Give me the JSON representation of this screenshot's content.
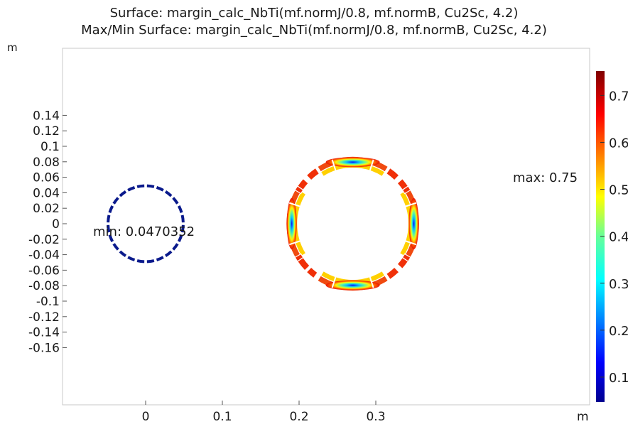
{
  "titles": {
    "line1": "Surface: margin_calc_NbTi(mf.normJ/0.8, mf.normB, Cu2Sc, 4.2)",
    "line2": "Max/Min Surface: margin_calc_NbTi(mf.normJ/0.8, mf.normB, Cu2Sc, 4.2)"
  },
  "chart_data": {
    "type": "surface",
    "xlabel": "m",
    "ylabel": "m",
    "xlim": [
      -0.067,
      0.366
    ],
    "ylim": [
      -0.17,
      0.163
    ],
    "xticks": [
      0,
      0.1,
      0.2,
      0.3
    ],
    "xtick_labels": [
      "0",
      "0.1",
      "0.2",
      "0.3"
    ],
    "yticks": [
      0.14,
      0.12,
      0.1,
      0.08,
      0.06,
      0.04,
      0.02,
      0,
      -0.02,
      -0.04,
      -0.06,
      -0.08,
      -0.1,
      -0.12,
      -0.14,
      -0.16
    ],
    "ytick_labels": [
      "0.14",
      "0.12",
      "0.1",
      "0.08",
      "0.06",
      "0.04",
      "0.02",
      "0",
      "-0.02",
      "-0.04",
      "-0.06",
      "-0.08",
      "-0.1",
      "-0.12",
      "-0.14",
      "-0.16"
    ],
    "colorbar": {
      "range": [
        0.047,
        0.752
      ],
      "ticks": [
        0.1,
        0.2,
        0.3,
        0.4,
        0.5,
        0.6,
        0.7
      ],
      "tick_labels": [
        "0.1",
        "0.2",
        "0.3",
        "0.4",
        "0.5",
        "0.6",
        "0.7"
      ]
    },
    "annotations": [
      {
        "name": "min",
        "text": "min: 0.0470352",
        "x": 0.0,
        "y": 0.0
      },
      {
        "name": "max",
        "text": "max: 0.75",
        "x": 0.35,
        "y": 0.04
      }
    ],
    "small_coil": {
      "center": [
        0,
        0
      ],
      "radius": 0.049
    },
    "large_coil": {
      "center": [
        0.27,
        0
      ],
      "r_inner": 0.072,
      "r_mid": 0.079,
      "r_outer": 0.087
    }
  }
}
